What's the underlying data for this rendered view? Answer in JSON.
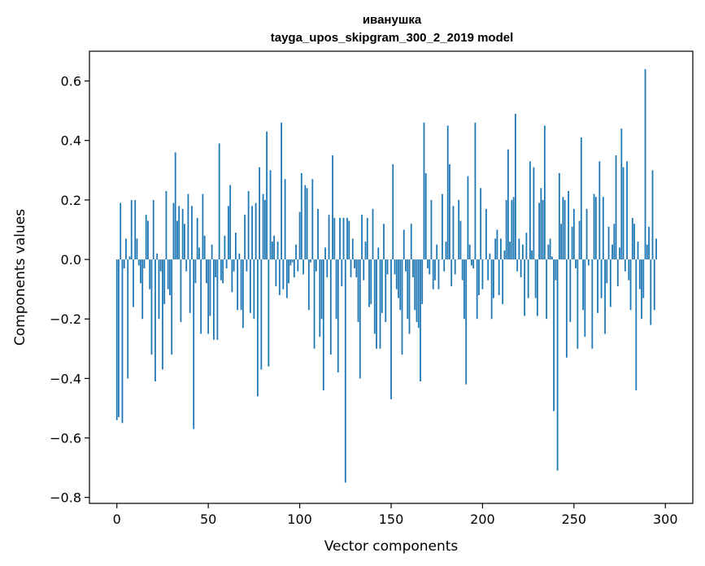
{
  "chart_data": {
    "type": "bar",
    "title": "иванушка",
    "subtitle": "tayga_upos_skipgram_300_2_2019 model",
    "xlabel": "Vector components",
    "ylabel": "Components values",
    "xlim": [
      -15,
      315
    ],
    "ylim": [
      -0.82,
      0.7
    ],
    "xticks": [
      0,
      50,
      100,
      150,
      200,
      250,
      300
    ],
    "xtick_labels": [
      "0",
      "50",
      "100",
      "150",
      "200",
      "250",
      "300"
    ],
    "yticks": [
      0.6,
      0.4,
      0.2,
      0.0,
      -0.2,
      -0.4,
      -0.6,
      -0.8
    ],
    "ytick_labels": [
      "0.6",
      "0.4",
      "0.2",
      "0.0",
      "−0.2",
      "−0.4",
      "−0.6",
      "−0.8"
    ],
    "grid": false,
    "color": "#1f77b4",
    "x": "0..299 (component index)",
    "values": [
      -0.54,
      -0.53,
      0.19,
      -0.55,
      -0.03,
      0.07,
      -0.4,
      0.01,
      0.2,
      -0.16,
      0.2,
      0.07,
      -0.02,
      -0.08,
      -0.2,
      -0.03,
      0.15,
      0.13,
      -0.1,
      -0.32,
      0.2,
      -0.41,
      0.02,
      -0.2,
      -0.04,
      -0.37,
      -0.15,
      0.23,
      -0.1,
      -0.12,
      -0.32,
      0.19,
      0.36,
      0.13,
      0.18,
      -0.21,
      0.17,
      0.12,
      -0.04,
      0.22,
      -0.18,
      0.18,
      -0.57,
      -0.08,
      0.14,
      0.04,
      -0.25,
      0.22,
      0.08,
      -0.08,
      -0.25,
      -0.19,
      0.05,
      -0.27,
      -0.06,
      -0.27,
      0.39,
      -0.07,
      -0.08,
      0.08,
      -0.03,
      0.18,
      0.25,
      -0.11,
      -0.04,
      0.09,
      -0.17,
      0.02,
      -0.17,
      -0.23,
      0.15,
      -0.04,
      0.23,
      -0.18,
      0.18,
      -0.2,
      0.19,
      -0.46,
      0.31,
      -0.37,
      0.22,
      0.2,
      0.43,
      -0.36,
      0.3,
      0.06,
      0.08,
      -0.09,
      0.06,
      -0.12,
      0.46,
      -0.1,
      0.27,
      -0.13,
      -0.08,
      -0.02,
      -0.01,
      -0.06,
      0.05,
      -0.04,
      0.16,
      0.29,
      -0.05,
      0.25,
      0.24,
      -0.17,
      -0.01,
      0.27,
      -0.3,
      -0.04,
      0.17,
      -0.26,
      -0.2,
      -0.44,
      0.04,
      -0.06,
      0.15,
      -0.32,
      0.35,
      0.14,
      -0.2,
      -0.38,
      0.14,
      -0.09,
      0.14,
      -0.75,
      0.14,
      0.13,
      -0.06,
      0.07,
      -0.03,
      -0.06,
      -0.21,
      -0.4,
      0.15,
      -0.07,
      0.06,
      0.14,
      -0.16,
      -0.15,
      0.17,
      -0.25,
      -0.3,
      0.04,
      -0.3,
      -0.18,
      0.12,
      -0.21,
      -0.05,
      0.0,
      -0.47,
      0.32,
      -0.05,
      -0.1,
      -0.13,
      -0.17,
      -0.32,
      0.1,
      -0.04,
      -0.2,
      -0.25,
      0.12,
      -0.06,
      -0.17,
      -0.21,
      -0.23,
      -0.41,
      -0.15,
      0.46,
      0.29,
      -0.03,
      -0.05,
      0.2,
      -0.1,
      -0.07,
      0.05,
      -0.1,
      0.0,
      0.22,
      -0.04,
      0.06,
      0.45,
      0.32,
      -0.09,
      0.18,
      -0.05,
      0.0,
      0.2,
      0.13,
      -0.07,
      -0.2,
      -0.42,
      0.28,
      0.05,
      -0.02,
      -0.03,
      0.46,
      -0.2,
      -0.12,
      0.24,
      -0.1,
      0.0,
      0.17,
      -0.07,
      0.02,
      -0.2,
      -0.13,
      0.07,
      0.1,
      -0.12,
      0.07,
      -0.15,
      0.03,
      0.2,
      0.37,
      0.06,
      0.2,
      0.21,
      0.49,
      -0.04,
      0.07,
      -0.06,
      0.05,
      -0.19,
      0.09,
      -0.13,
      0.33,
      0.03,
      0.31,
      -0.13,
      -0.19,
      0.19,
      0.24,
      0.2,
      0.45,
      -0.2,
      0.05,
      0.07,
      0.01,
      -0.51,
      -0.07,
      -0.71,
      0.29,
      0.12,
      0.21,
      0.2,
      -0.33,
      0.23,
      -0.21,
      0.11,
      0.17,
      -0.03,
      -0.3,
      0.13,
      0.41,
      -0.17,
      -0.26,
      0.17,
      -0.02,
      0.0,
      -0.3,
      0.22,
      0.21,
      -0.18,
      0.33,
      -0.13,
      0.21,
      -0.25,
      -0.08,
      0.11,
      -0.16,
      0.05,
      0.12,
      0.35,
      -0.09,
      0.04,
      0.44,
      0.31,
      -0.04,
      0.33,
      -0.07,
      -0.17,
      0.14,
      0.12,
      -0.44,
      0.06,
      -0.1,
      -0.2,
      -0.13,
      0.64,
      0.05,
      0.11,
      -0.22,
      0.3,
      -0.17,
      0.07
    ]
  }
}
